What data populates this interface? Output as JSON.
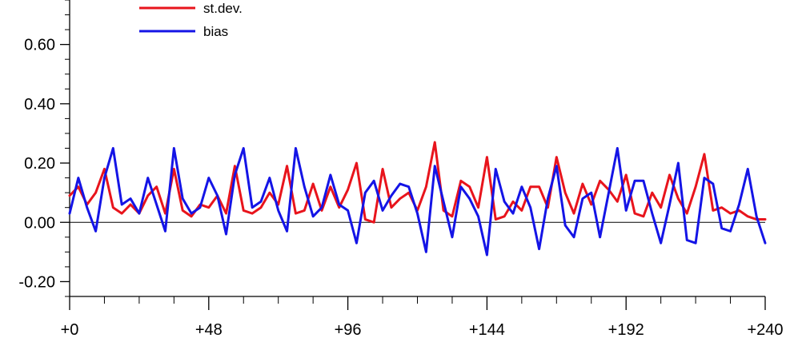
{
  "chart_data": {
    "type": "line",
    "title": "",
    "xlabel": "",
    "ylabel": "",
    "xlim": [
      0,
      240
    ],
    "ylim": [
      -0.25,
      0.75
    ],
    "x_tick_values": [
      0,
      48,
      96,
      144,
      192,
      240
    ],
    "x_tick_labels": [
      "+0",
      "+48",
      "+96",
      "+144",
      "+192",
      "+240"
    ],
    "y_tick_values": [
      -0.2,
      0.0,
      0.2,
      0.4,
      0.6
    ],
    "y_tick_labels": [
      "-0.20",
      "0.00",
      "0.20",
      "0.40",
      "0.60"
    ],
    "reference_line_y": 0,
    "grid": false,
    "legend": {
      "position": "top-left"
    },
    "series": [
      {
        "name": "st.dev.",
        "color": "#e8141c",
        "x": [
          0,
          3,
          6,
          9,
          12,
          15,
          18,
          21,
          24,
          27,
          30,
          33,
          36,
          39,
          42,
          45,
          48,
          51,
          54,
          57,
          60,
          63,
          66,
          69,
          72,
          75,
          78,
          81,
          84,
          87,
          90,
          93,
          96,
          99,
          102,
          105,
          108,
          111,
          114,
          117,
          120,
          123,
          126,
          129,
          132,
          135,
          138,
          141,
          144,
          147,
          150,
          153,
          156,
          159,
          162,
          165,
          168,
          171,
          174,
          177,
          180,
          183,
          186,
          189,
          192,
          195,
          198,
          201,
          204,
          207,
          210,
          213,
          216,
          219,
          222,
          225,
          228,
          231,
          234,
          237,
          240
        ],
        "values": [
          0.09,
          0.12,
          0.06,
          0.1,
          0.18,
          0.05,
          0.03,
          0.06,
          0.03,
          0.09,
          0.12,
          0.03,
          0.18,
          0.04,
          0.02,
          0.06,
          0.05,
          0.09,
          0.03,
          0.19,
          0.04,
          0.03,
          0.05,
          0.1,
          0.06,
          0.19,
          0.03,
          0.04,
          0.13,
          0.04,
          0.12,
          0.05,
          0.11,
          0.2,
          0.01,
          0.0,
          0.18,
          0.05,
          0.08,
          0.1,
          0.04,
          0.12,
          0.27,
          0.04,
          0.02,
          0.14,
          0.12,
          0.05,
          0.22,
          0.01,
          0.02,
          0.07,
          0.04,
          0.12,
          0.12,
          0.05,
          0.22,
          0.1,
          0.03,
          0.13,
          0.06,
          0.14,
          0.11,
          0.07,
          0.16,
          0.03,
          0.02,
          0.1,
          0.05,
          0.16,
          0.08,
          0.03,
          0.12,
          0.23,
          0.04,
          0.05,
          0.03,
          0.04,
          0.02,
          0.01,
          0.01
        ]
      },
      {
        "name": "bias",
        "color": "#1414e6",
        "x": [
          0,
          3,
          6,
          9,
          12,
          15,
          18,
          21,
          24,
          27,
          30,
          33,
          36,
          39,
          42,
          45,
          48,
          51,
          54,
          57,
          60,
          63,
          66,
          69,
          72,
          75,
          78,
          81,
          84,
          87,
          90,
          93,
          96,
          99,
          102,
          105,
          108,
          111,
          114,
          117,
          120,
          123,
          126,
          129,
          132,
          135,
          138,
          141,
          144,
          147,
          150,
          153,
          156,
          159,
          162,
          165,
          168,
          171,
          174,
          177,
          180,
          183,
          186,
          189,
          192,
          195,
          198,
          201,
          204,
          207,
          210,
          213,
          216,
          219,
          222,
          225,
          228,
          231,
          234,
          237,
          240
        ],
        "values": [
          0.03,
          0.15,
          0.05,
          -0.03,
          0.15,
          0.25,
          0.06,
          0.08,
          0.03,
          0.15,
          0.06,
          -0.03,
          0.25,
          0.08,
          0.03,
          0.05,
          0.15,
          0.09,
          -0.04,
          0.16,
          0.25,
          0.05,
          0.07,
          0.15,
          0.04,
          -0.03,
          0.25,
          0.12,
          0.02,
          0.05,
          0.16,
          0.06,
          0.04,
          -0.07,
          0.1,
          0.14,
          0.04,
          0.09,
          0.13,
          0.12,
          0.03,
          -0.1,
          0.19,
          0.07,
          -0.05,
          0.12,
          0.08,
          0.02,
          -0.11,
          0.18,
          0.07,
          0.03,
          0.12,
          0.05,
          -0.09,
          0.08,
          0.19,
          -0.01,
          -0.05,
          0.08,
          0.1,
          -0.05,
          0.1,
          0.25,
          0.04,
          0.14,
          0.14,
          0.03,
          -0.07,
          0.06,
          0.2,
          -0.06,
          -0.07,
          0.15,
          0.13,
          -0.02,
          -0.03,
          0.06,
          0.18,
          0.02,
          -0.07
        ]
      }
    ]
  }
}
